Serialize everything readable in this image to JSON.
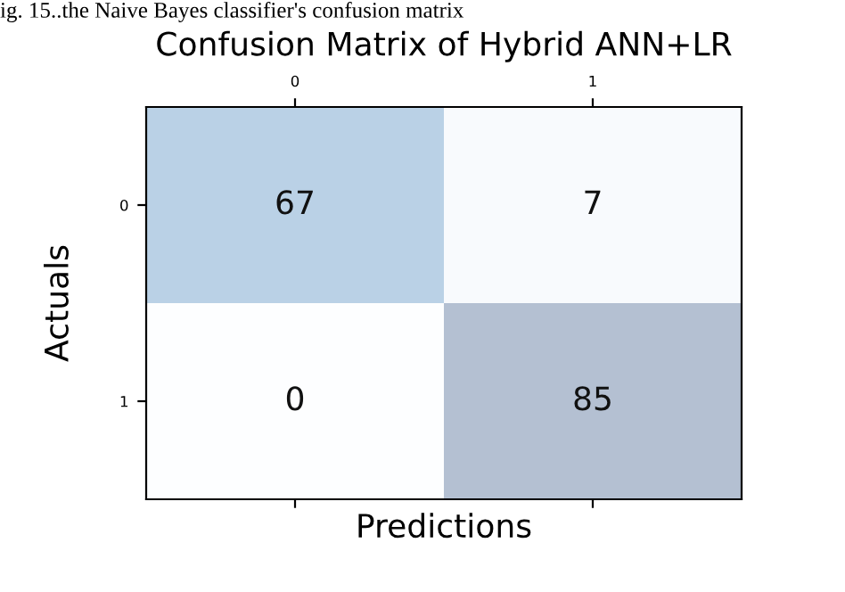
{
  "chart_data": {
    "type": "heatmap",
    "title": "Confusion Matrix of Hybrid ANN+LR",
    "xlabel": "Predictions",
    "ylabel": "Actuals",
    "categories": [
      "0",
      "1"
    ],
    "y_categories": [
      "0",
      "1"
    ],
    "cells": [
      [
        67,
        7
      ],
      [
        0,
        85
      ]
    ],
    "data_labels": true,
    "annotations": [
      "ig. 15..the Naive Bayes classifier's confusion matrix"
    ]
  }
}
